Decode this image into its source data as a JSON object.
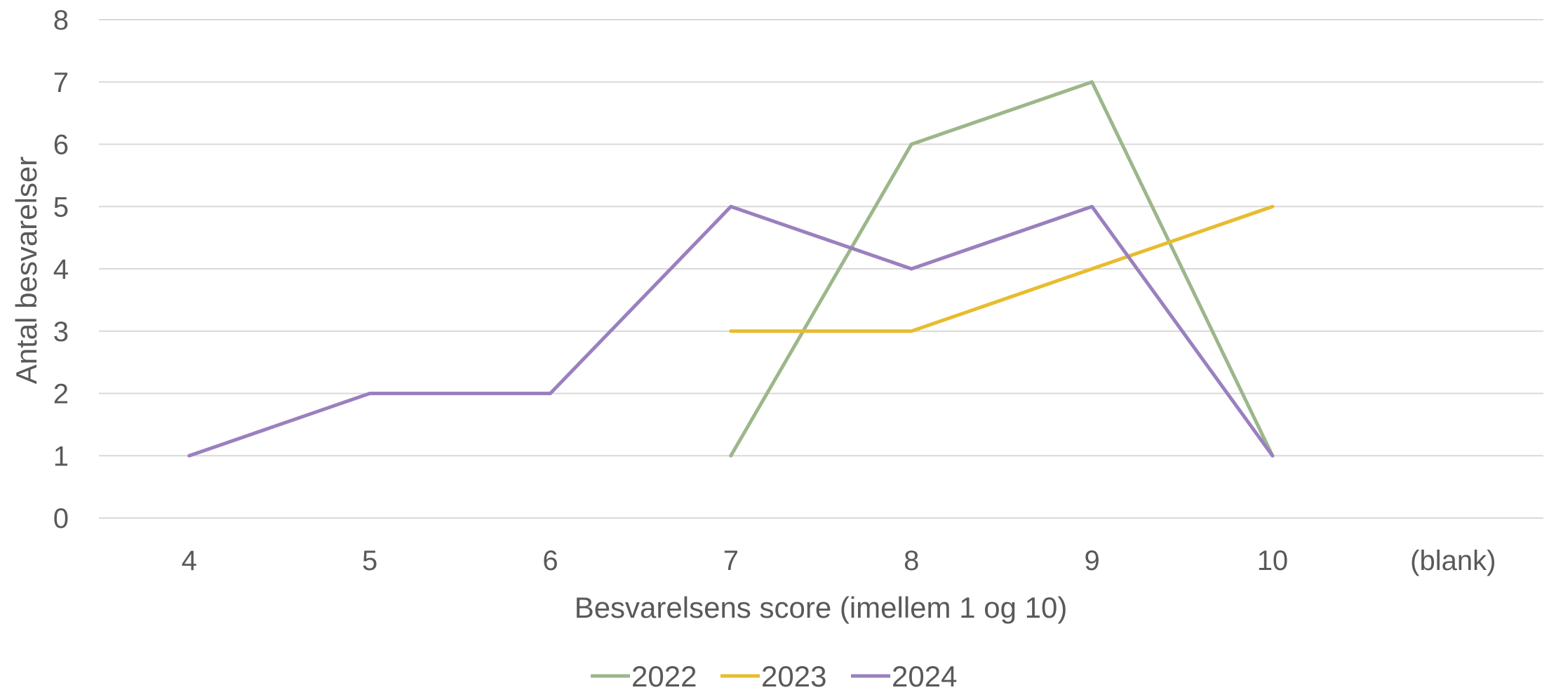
{
  "chart_data": {
    "type": "line",
    "categories": [
      "4",
      "5",
      "6",
      "7",
      "8",
      "9",
      "10",
      "(blank)"
    ],
    "xlabel": "Besvarelsens score (imellem 1 og 10)",
    "ylabel": "Antal besvarelser",
    "ylim": [
      0,
      8
    ],
    "yticks": [
      "0",
      "1",
      "2",
      "3",
      "4",
      "5",
      "6",
      "7",
      "8"
    ],
    "grid": true,
    "legend_position": "bottom",
    "series": [
      {
        "name": "2022",
        "color": "#9cb78a",
        "values": [
          null,
          null,
          null,
          1,
          6,
          7,
          1,
          null
        ]
      },
      {
        "name": "2023",
        "color": "#e8bc2e",
        "values": [
          null,
          null,
          null,
          3,
          3,
          4,
          5,
          null
        ]
      },
      {
        "name": "2024",
        "color": "#9a80bf",
        "values": [
          1,
          2,
          2,
          5,
          4,
          5,
          1,
          null
        ]
      }
    ]
  }
}
